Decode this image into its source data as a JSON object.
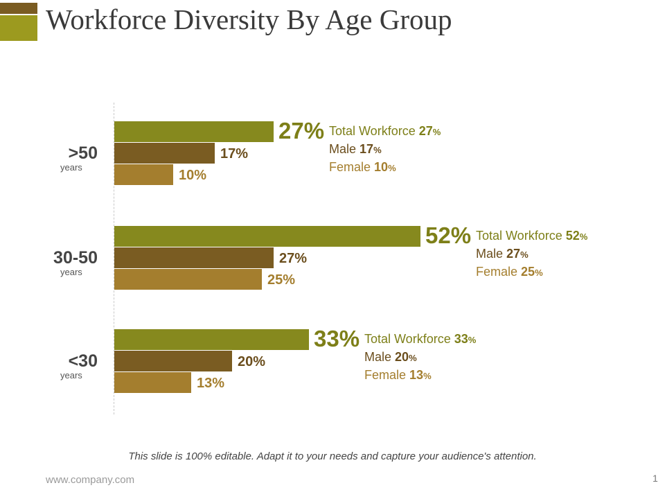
{
  "slide": {
    "title": "Workforce Diversity By Age Group",
    "note": "This slide is 100% editable. Adapt it to your needs and capture your audience's attention.",
    "footer_url": "www.company.com",
    "page_number": "1"
  },
  "colors": {
    "total": "#86891e",
    "male": "#7a5c22",
    "female": "#a47e2e"
  },
  "chart_data": {
    "type": "bar",
    "orientation": "horizontal",
    "title": "Workforce Diversity By Age Group",
    "categories": [
      ">50",
      "30-50",
      "<30"
    ],
    "category_sublabel": "years",
    "series": [
      {
        "name": "Total Workforce",
        "values": [
          27,
          52,
          33
        ]
      },
      {
        "name": "Male",
        "values": [
          17,
          27,
          20
        ]
      },
      {
        "name": "Female",
        "values": [
          10,
          25,
          13
        ]
      }
    ],
    "unit": "%",
    "xlim": [
      0,
      100
    ],
    "labels": {
      "total": [
        "27%",
        "52%",
        "33%"
      ],
      "male": [
        "17%",
        "27%",
        "20%"
      ],
      "female": [
        "10%",
        "25%",
        "13%"
      ]
    },
    "legend": [
      {
        "total_label": "Total Workforce",
        "total_value": "27",
        "male_label": "Male",
        "male_value": "17",
        "female_label": "Female",
        "female_value": "10",
        "sign": "%"
      },
      {
        "total_label": "Total Workforce",
        "total_value": "52",
        "male_label": "Male",
        "male_value": "27",
        "female_label": "Female",
        "female_value": "25",
        "sign": "%"
      },
      {
        "total_label": "Total Workforce",
        "total_value": "33",
        "male_label": "Male",
        "male_value": "20",
        "female_label": "Female",
        "female_value": "13",
        "sign": "%"
      }
    ]
  }
}
